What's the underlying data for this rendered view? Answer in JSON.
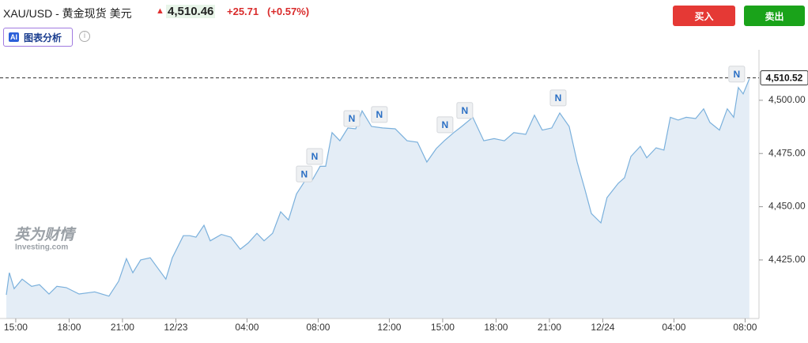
{
  "header": {
    "symbol": "XAU/USD - 黄金现货 美元",
    "price": "4,510.46",
    "change": "+25.71",
    "change_percent": "(+0.57%)",
    "buy": "买入",
    "sell": "卖出",
    "ai_badge": "AI",
    "analysis": "图表分析"
  },
  "chart_data": {
    "type": "area",
    "watermark": "英为财情",
    "watermark_sub": "Investing.com",
    "color": "#7ab0dc",
    "fill": "#e4edf6",
    "x": [
      -0.53,
      -0.36,
      -0.09,
      0.36,
      0.89,
      1.33,
      1.87,
      2.31,
      2.84,
      3.56,
      4.44,
      5.24,
      5.78,
      6.22,
      6.58,
      7.02,
      7.56,
      8,
      8.44,
      8.8,
      9.42,
      9.78,
      10.13,
      10.58,
      10.93,
      11.56,
      12.09,
      12.62,
      13.07,
      13.56,
      13.96,
      14.44,
      14.89,
      15.33,
      15.78,
      16.22,
      16.67,
      17.11,
      17.42,
      17.78,
      18.22,
      18.67,
      19.11,
      19.47,
      20,
      20.62,
      21.33,
      22,
      22.58,
      23.11,
      23.64,
      24.09,
      24.62,
      25.07,
      25.69,
      26.31,
      26.89,
      27.47,
      28,
      28.67,
      29.16,
      29.6,
      30.13,
      30.58,
      31.11,
      31.56,
      32,
      32.36,
      32.89,
      33.24,
      33.87,
      34.22,
      34.58,
      35.11,
      35.47,
      36,
      36.44,
      36.8,
      37.24,
      37.69,
      38.22,
      38.67,
      39.02,
      39.56,
      40,
      40.36,
      40.62,
      40.89,
      41.24
    ],
    "values": [
      4408.6,
      4419,
      4411.5,
      4416,
      4412.6,
      4413.4,
      4409,
      4412.6,
      4412,
      4409,
      4410,
      4408,
      4415,
      4425.6,
      4419,
      4425,
      4426,
      4421,
      4416,
      4426,
      4436.4,
      4436.4,
      4435.7,
      4441.3,
      4434,
      4437,
      4435.7,
      4430,
      4433,
      4437.5,
      4434,
      4437.5,
      4447.6,
      4443.8,
      4456,
      4461.7,
      4462.5,
      4469,
      4469,
      4484.8,
      4481,
      4487,
      4486.6,
      4495,
      4487.7,
      4487,
      4486.6,
      4481,
      4480.3,
      4471,
      4477.3,
      4481,
      4484.8,
      4487.7,
      4492,
      4481,
      4482,
      4481,
      4484.8,
      4484,
      4493,
      4486,
      4487,
      4494,
      4487.7,
      4471,
      4458,
      4446.8,
      4442.4,
      4454.3,
      4461,
      4463.6,
      4473.6,
      4478.4,
      4473,
      4477.7,
      4476.6,
      4492,
      4490.7,
      4492,
      4491.4,
      4496,
      4489.6,
      4486,
      4496,
      4492,
      4506,
      4503,
      4510
    ],
    "xlim": [
      -0.53,
      41.78
    ],
    "xticks": [
      {
        "value": 0,
        "label": "15:00"
      },
      {
        "value": 3,
        "label": "18:00"
      },
      {
        "value": 6,
        "label": "21:00"
      },
      {
        "value": 9,
        "label": "12/23"
      },
      {
        "value": 13,
        "label": "04:00"
      },
      {
        "value": 17,
        "label": "08:00"
      },
      {
        "value": 21,
        "label": "12:00"
      },
      {
        "value": 24,
        "label": "15:00"
      },
      {
        "value": 27,
        "label": "18:00"
      },
      {
        "value": 30,
        "label": "21:00"
      },
      {
        "value": 33,
        "label": "12/24"
      },
      {
        "value": 37,
        "label": "04:00"
      },
      {
        "value": 41,
        "label": "08:00"
      }
    ],
    "ylim": [
      4397.5,
      4520
    ],
    "yticks": [
      {
        "value": 4425,
        "label": "4,425.00"
      },
      {
        "value": 4450,
        "label": "4,450.00"
      },
      {
        "value": 4475,
        "label": "4,475.00"
      },
      {
        "value": 4500,
        "label": "4,500.00"
      }
    ],
    "current_price": {
      "value": 4510.52,
      "label": "4,510.52"
    },
    "annotations": [
      {
        "x": 16.22,
        "y": 4465.4,
        "label": "N"
      },
      {
        "x": 16.8,
        "y": 4473.6,
        "label": "N"
      },
      {
        "x": 18.89,
        "y": 4491.4,
        "label": "N"
      },
      {
        "x": 20.44,
        "y": 4493.3,
        "label": "N"
      },
      {
        "x": 24.13,
        "y": 4488.5,
        "label": "N"
      },
      {
        "x": 25.24,
        "y": 4495.2,
        "label": "N"
      },
      {
        "x": 30.49,
        "y": 4501.1,
        "label": "N"
      },
      {
        "x": 40.53,
        "y": 4512.3,
        "label": "N"
      }
    ]
  }
}
